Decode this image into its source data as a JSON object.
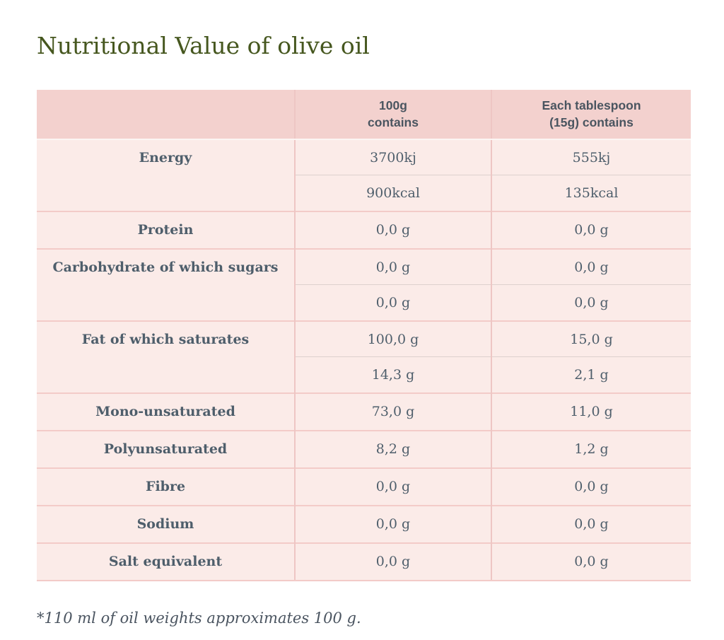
{
  "page": {
    "title": "Nutritional Value of olive oil",
    "footnote": "*110 ml of oil weights approximates 100 g.",
    "colors": {
      "title_green": "#46571f",
      "header_bg": "#f3d1ce",
      "body_bg": "#fbebe8",
      "text": "#4e5e6b",
      "major_divider": "#f3cbc8",
      "sub_divider": "#ddd0ce",
      "vertical_divider": "#eec6c4"
    }
  },
  "table": {
    "header": {
      "col1": "",
      "col2_lines": [
        "100g",
        "contains"
      ],
      "col3_lines": [
        "Each tablespoon",
        "(15g) contains"
      ]
    },
    "rows": [
      {
        "label": "Energy",
        "subrows": [
          [
            "3700kj",
            "555kj"
          ],
          [
            "900kcal",
            "135kcal"
          ]
        ]
      },
      {
        "label": "Protein",
        "subrows": [
          [
            "0,0 g",
            "0,0 g"
          ]
        ]
      },
      {
        "label": "Carbohydrate of which sugars",
        "subrows": [
          [
            "0,0 g",
            "0,0 g"
          ],
          [
            "0,0 g",
            "0,0 g"
          ]
        ]
      },
      {
        "label": "Fat of which saturates",
        "subrows": [
          [
            "100,0 g",
            "15,0 g"
          ],
          [
            "14,3 g",
            "2,1 g"
          ]
        ]
      },
      {
        "label": "Mono-unsaturated",
        "subrows": [
          [
            "73,0 g",
            "11,0 g"
          ]
        ]
      },
      {
        "label": "Polyunsaturated",
        "subrows": [
          [
            "8,2 g",
            "1,2 g"
          ]
        ]
      },
      {
        "label": "Fibre",
        "subrows": [
          [
            "0,0 g",
            "0,0 g"
          ]
        ]
      },
      {
        "label": "Sodium",
        "subrows": [
          [
            "0,0 g",
            "0,0 g"
          ]
        ]
      },
      {
        "label": "Salt equivalent",
        "subrows": [
          [
            "0,0 g",
            "0,0 g"
          ]
        ]
      }
    ]
  }
}
